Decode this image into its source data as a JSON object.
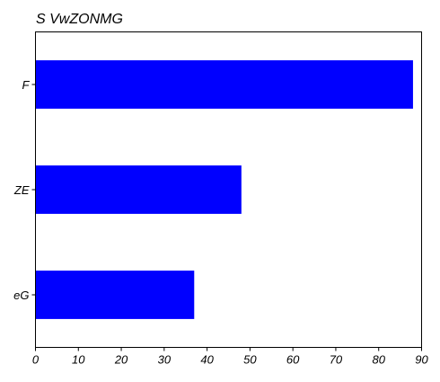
{
  "chart_data": {
    "type": "bar",
    "orientation": "horizontal",
    "title": "S VwZONMG",
    "xlabel": "",
    "ylabel": "",
    "categories": [
      "F",
      "ZE",
      "eG"
    ],
    "values": [
      88,
      48,
      37
    ],
    "xlim": [
      0,
      90
    ],
    "x_ticks": [
      0,
      10,
      20,
      30,
      40,
      50,
      60,
      70,
      80,
      90
    ],
    "grid": false,
    "legend": "none",
    "bar_color": "#0000ff"
  }
}
